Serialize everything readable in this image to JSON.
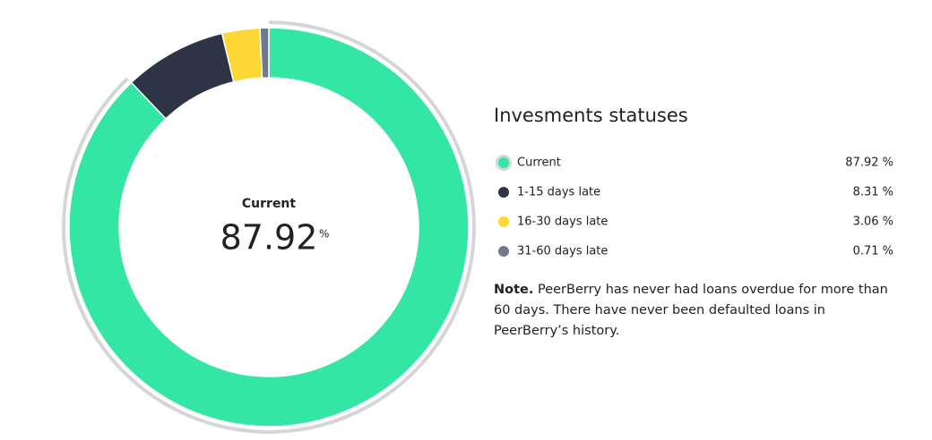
{
  "chart_data": {
    "type": "donut",
    "title": "Invesments statuses",
    "categories": [
      "Current",
      "1-15 days late",
      "16-30 days late",
      "31-60 days late"
    ],
    "values": [
      87.92,
      8.31,
      3.06,
      0.71
    ],
    "value_labels": [
      "87.92 %",
      "8.31 %",
      "3.06 %",
      "0.71 %"
    ],
    "colors": [
      "#33e6a4",
      "#2d3446",
      "#fdd835",
      "#6f7a8c"
    ],
    "center_unit": "%",
    "active": 0
  },
  "note": {
    "label": "Note.",
    "text": "PeerBerry has never had loans overdue for more than 60 days. There have never been defaulted loans in PeerBerry’s history."
  }
}
